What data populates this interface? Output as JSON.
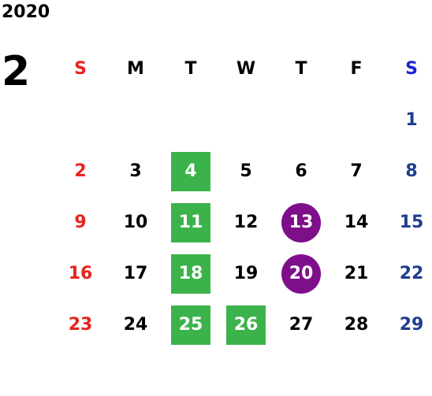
{
  "calendar": {
    "year": "2020",
    "month": "2",
    "weekdays": [
      {
        "label": "S",
        "color": "#e8231d"
      },
      {
        "label": "M",
        "color": "#000000"
      },
      {
        "label": "T",
        "color": "#000000"
      },
      {
        "label": "W",
        "color": "#000000"
      },
      {
        "label": "T",
        "color": "#000000"
      },
      {
        "label": "F",
        "color": "#000000"
      },
      {
        "label": "S",
        "color": "#1b23d6"
      }
    ],
    "colors": {
      "sunday": "#e8231d",
      "saturday": "#1f3d8f",
      "weekday": "#000000",
      "square_highlight": "#3cb34a",
      "circle_highlight": "#7e0f8a",
      "highlight_text": "#ffffff"
    },
    "weeks": [
      [
        null,
        null,
        null,
        null,
        null,
        null,
        {
          "day": "1"
        }
      ],
      [
        {
          "day": "2"
        },
        {
          "day": "3"
        },
        {
          "day": "4",
          "mark": "square"
        },
        {
          "day": "5"
        },
        {
          "day": "6"
        },
        {
          "day": "7"
        },
        {
          "day": "8"
        }
      ],
      [
        {
          "day": "9"
        },
        {
          "day": "10"
        },
        {
          "day": "11",
          "mark": "square"
        },
        {
          "day": "12"
        },
        {
          "day": "13",
          "mark": "circle"
        },
        {
          "day": "14"
        },
        {
          "day": "15"
        }
      ],
      [
        {
          "day": "16"
        },
        {
          "day": "17"
        },
        {
          "day": "18",
          "mark": "square"
        },
        {
          "day": "19"
        },
        {
          "day": "20",
          "mark": "circle"
        },
        {
          "day": "21"
        },
        {
          "day": "22"
        }
      ],
      [
        {
          "day": "23"
        },
        {
          "day": "24"
        },
        {
          "day": "25",
          "mark": "square"
        },
        {
          "day": "26",
          "mark": "square"
        },
        {
          "day": "27"
        },
        {
          "day": "28"
        },
        {
          "day": "29"
        }
      ]
    ]
  }
}
